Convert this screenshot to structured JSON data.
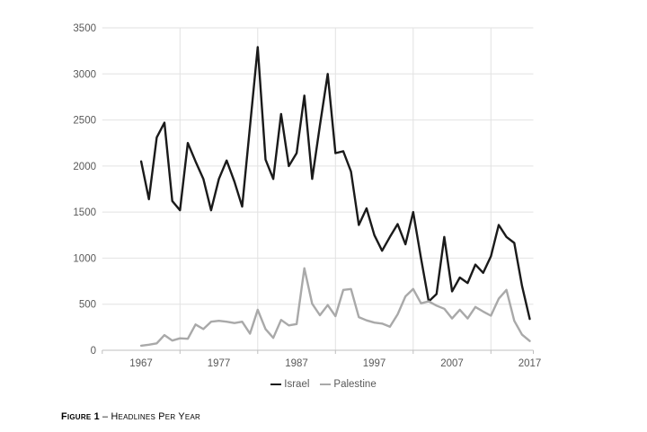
{
  "figure": {
    "caption_label": "Figure 1",
    "caption_title": "– Headlines Per Year"
  },
  "legend": {
    "israel_label": "Israel",
    "palestine_label": "Palestine"
  },
  "colors": {
    "israel_line": "#1a1a1a",
    "palestine_line": "#a9a9a9",
    "gridline": "#e2e2e2",
    "axis_line": "#bfbfbf",
    "tick_text": "#595959"
  },
  "chart_data": {
    "type": "line",
    "title": "",
    "xlabel": "",
    "ylabel": "",
    "ylim": [
      0,
      3500
    ],
    "yticks": [
      0,
      500,
      1000,
      1500,
      2000,
      2500,
      3000,
      3500
    ],
    "xticks_labeled": [
      1967,
      1977,
      1987,
      1997,
      2007,
      2017
    ],
    "grid_years": [
      1972,
      1982,
      1992,
      2002,
      2012
    ],
    "grid": true,
    "legend_position": "bottom",
    "x": [
      1967,
      1968,
      1969,
      1970,
      1971,
      1972,
      1973,
      1974,
      1975,
      1976,
      1977,
      1978,
      1979,
      1980,
      1981,
      1982,
      1983,
      1984,
      1985,
      1986,
      1987,
      1988,
      1989,
      1990,
      1991,
      1992,
      1993,
      1994,
      1995,
      1996,
      1997,
      1998,
      1999,
      2000,
      2001,
      2002,
      2003,
      2004,
      2005,
      2006,
      2007,
      2008,
      2009,
      2010,
      2011,
      2012,
      2013,
      2014,
      2015,
      2016,
      2017
    ],
    "series": [
      {
        "name": "Israel",
        "color": "#1a1a1a",
        "values": [
          2050,
          1640,
          2310,
          2470,
          1620,
          1520,
          2250,
          2050,
          1860,
          1520,
          1860,
          2060,
          1830,
          1560,
          2430,
          3290,
          2070,
          1860,
          2565,
          2000,
          2140,
          2765,
          1860,
          2440,
          3000,
          2140,
          2160,
          1940,
          1360,
          1540,
          1250,
          1080,
          1230,
          1370,
          1150,
          1500,
          1000,
          530,
          610,
          1230,
          640,
          790,
          730,
          930,
          840,
          1020,
          1360,
          1230,
          1165,
          700,
          340
        ]
      },
      {
        "name": "Palestine",
        "color": "#a9a9a9",
        "values": [
          50,
          60,
          75,
          165,
          105,
          130,
          125,
          280,
          230,
          310,
          320,
          310,
          295,
          310,
          180,
          440,
          230,
          135,
          330,
          270,
          285,
          890,
          505,
          380,
          490,
          370,
          655,
          665,
          360,
          325,
          300,
          290,
          255,
          390,
          585,
          665,
          510,
          530,
          485,
          450,
          345,
          440,
          345,
          470,
          420,
          375,
          560,
          655,
          320,
          170,
          100
        ]
      }
    ]
  }
}
